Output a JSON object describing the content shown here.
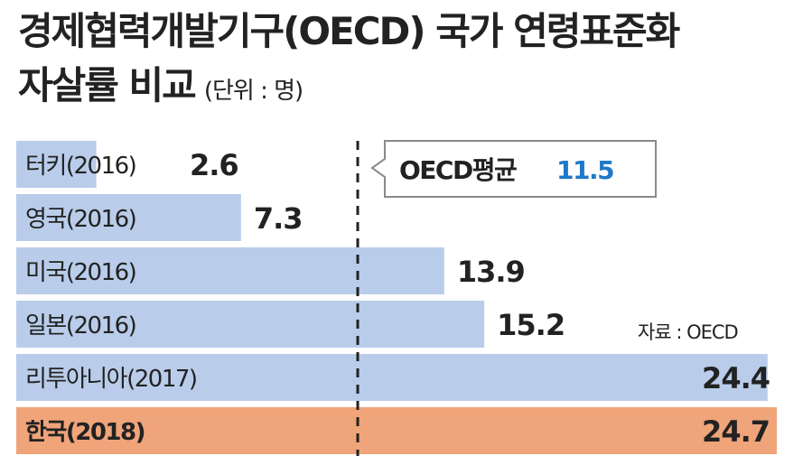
{
  "header": {
    "title_line1": "경제협력개발기구(OECD) 국가 연령표준화",
    "title_line2": "자살률 비교",
    "unit": "(단위 : 명)"
  },
  "source": "자료 : OECD",
  "colors": {
    "bar": "#b9cdea",
    "highlight": "#f0a47a",
    "accent_value": "#1f78c8",
    "text": "#222222"
  },
  "chart_data": {
    "type": "bar",
    "orientation": "horizontal",
    "title": "경제협력개발기구(OECD) 국가 연령표준화 자살률 비교",
    "unit": "명",
    "categories": [
      "터키(2016)",
      "영국(2016)",
      "미국(2016)",
      "일본(2016)",
      "리투아니아(2017)",
      "한국(2018)"
    ],
    "values": [
      2.6,
      7.3,
      13.9,
      15.2,
      24.4,
      24.7
    ],
    "value_labels": [
      "2.6",
      "7.3",
      "13.9",
      "15.2",
      "24.4",
      "24.7"
    ],
    "highlight_index": 5,
    "reference_line": {
      "label": "OECD평균",
      "value": 11.5,
      "value_label": "11.5"
    },
    "xlim": [
      0,
      24.7
    ]
  }
}
